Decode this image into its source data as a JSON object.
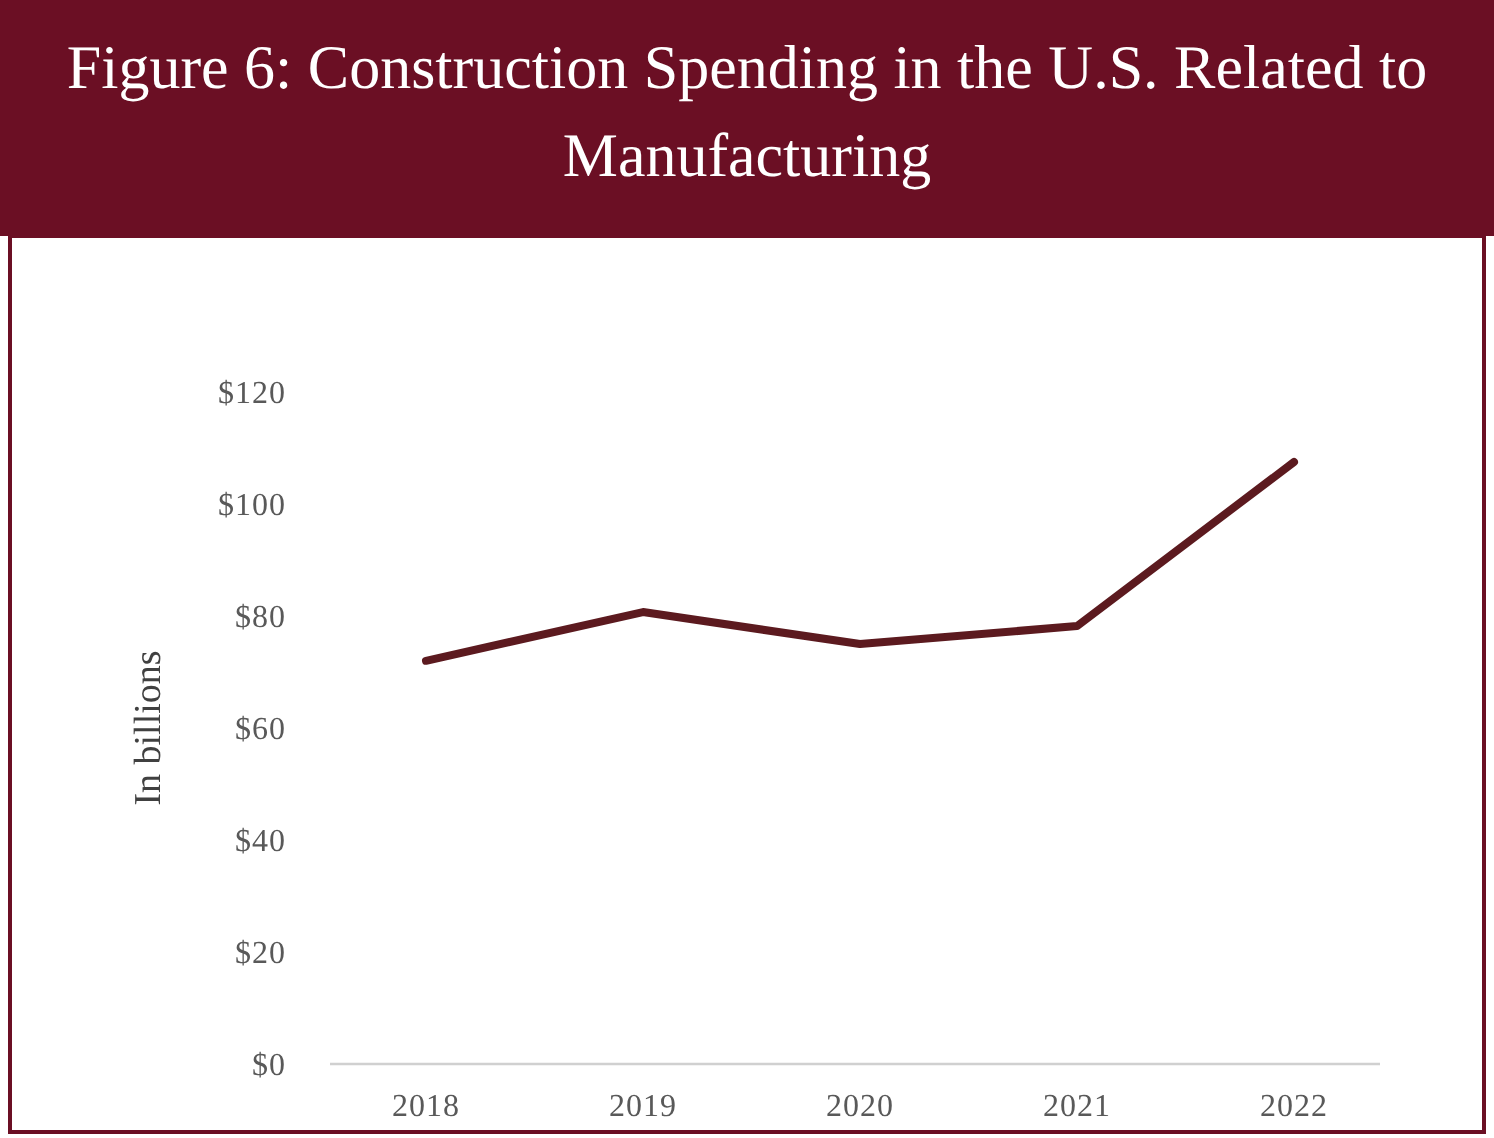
{
  "chart_data": {
    "type": "line",
    "title": "Figure 6: Construction Spending in the U.S. Related to Manufacturing",
    "ylabel": "In billions",
    "categories": [
      "2018",
      "2019",
      "2020",
      "2021",
      "2022"
    ],
    "series": [
      {
        "color": "#5c1a1f",
        "values": [
          72,
          80.7,
          75,
          78.2,
          107.5
        ]
      }
    ],
    "ylim": [
      0,
      120
    ],
    "yticks": [
      {
        "value": 0,
        "label": "$0"
      },
      {
        "value": 20,
        "label": "$20"
      },
      {
        "value": 40,
        "label": "$40"
      },
      {
        "value": 60,
        "label": "$60"
      },
      {
        "value": 80,
        "label": "$80"
      },
      {
        "value": 100,
        "label": "$100"
      },
      {
        "value": 120,
        "label": "$120"
      }
    ],
    "grid": false,
    "marker": "none",
    "line_style": "solid"
  }
}
